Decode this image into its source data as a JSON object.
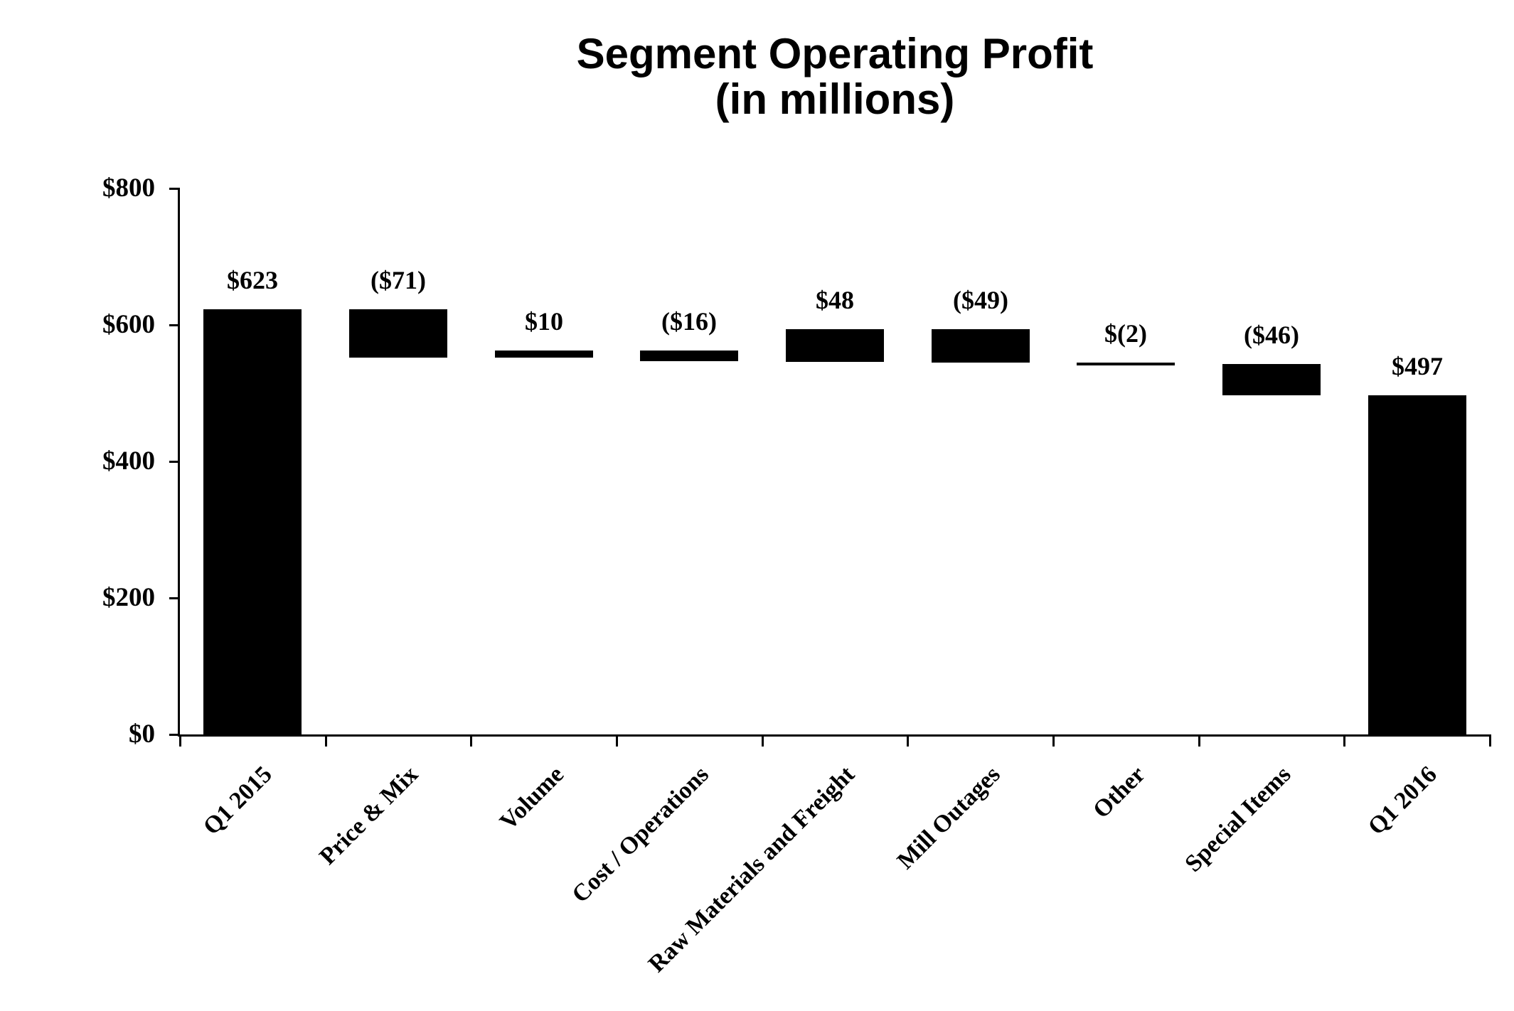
{
  "chart_data": {
    "type": "bar",
    "subtype": "waterfall",
    "title": "Segment Operating Profit",
    "subtitle": "(in millions)",
    "categories": [
      "Q1 2015",
      "Price & Mix",
      "Volume",
      "Cost / Operations",
      "Raw Materials and Freight",
      "Mill Outages",
      "Other",
      "Special Items",
      "Q1 2016"
    ],
    "bars": [
      {
        "category": "Q1 2015",
        "start": 0,
        "end": 623,
        "change": 623,
        "label": "$623"
      },
      {
        "category": "Price & Mix",
        "start": 552,
        "end": 623,
        "change": -71,
        "label": "($71)"
      },
      {
        "category": "Volume",
        "start": 552,
        "end": 562,
        "change": 10,
        "label": "$10"
      },
      {
        "category": "Cost / Operations",
        "start": 546,
        "end": 562,
        "change": -16,
        "label": "($16)"
      },
      {
        "category": "Raw Materials and Freight",
        "start": 546,
        "end": 594,
        "change": 48,
        "label": "$48"
      },
      {
        "category": "Mill Outages",
        "start": 545,
        "end": 594,
        "change": -49,
        "label": "($49)"
      },
      {
        "category": "Other",
        "start": 543,
        "end": 545,
        "change": -2,
        "label": "$(2)"
      },
      {
        "category": "Special Items",
        "start": 497,
        "end": 543,
        "change": -46,
        "label": "($46)"
      },
      {
        "category": "Q1 2016",
        "start": 0,
        "end": 497,
        "change": 497,
        "label": "$497"
      }
    ],
    "y_axis": {
      "min": 0,
      "max": 800,
      "tick_step": 200,
      "tick_labels": [
        "$0",
        "$200",
        "$400",
        "$600",
        "$800"
      ]
    },
    "xlabel": "",
    "ylabel": "",
    "grid": false,
    "legend": false,
    "bar_color": "#000000",
    "axis_color": "#000000",
    "background": "#ffffff"
  }
}
